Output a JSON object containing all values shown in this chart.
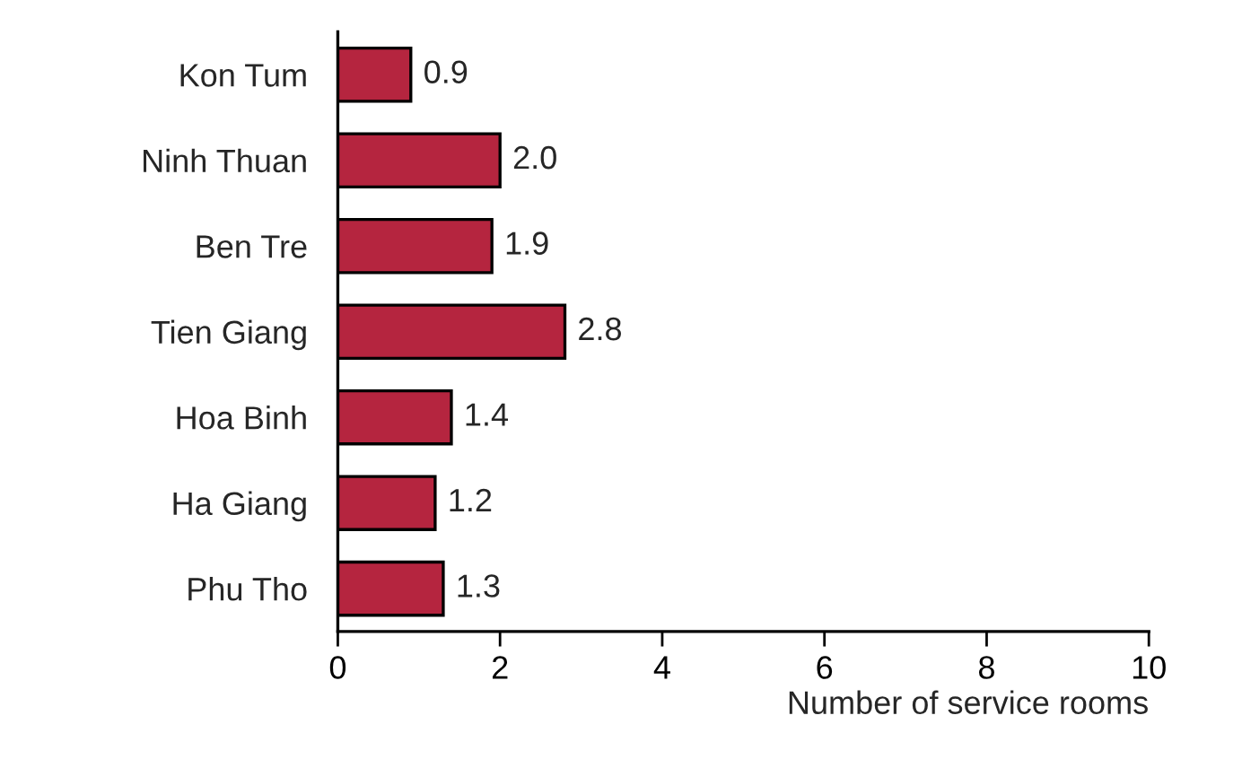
{
  "chart_data": {
    "type": "bar",
    "orientation": "horizontal",
    "xlabel": "Number of service rooms",
    "categories": [
      "Kon Tum",
      "Ninh Thuan",
      "Ben Tre",
      "Tien Giang",
      "Hoa Binh",
      "Ha Giang",
      "Phu Tho"
    ],
    "values": [
      0.9,
      2.0,
      1.9,
      2.8,
      1.4,
      1.2,
      1.3
    ],
    "value_labels": [
      "0.9",
      "2.0",
      "1.9",
      "2.8",
      "1.4",
      "1.2",
      "1.3"
    ],
    "color": "#b5253f",
    "xlim": [
      0,
      10
    ],
    "xticks": [
      0,
      2,
      4,
      6,
      8,
      10
    ],
    "grid": false
  }
}
